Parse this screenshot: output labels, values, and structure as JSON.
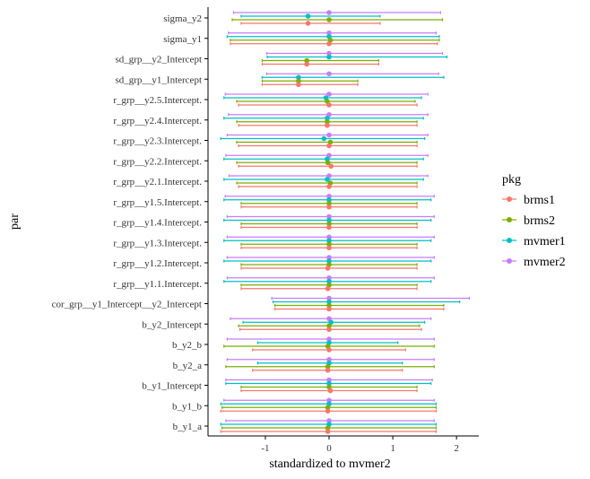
{
  "chart_data": {
    "type": "forest",
    "xlabel": "standardized to mvmer2",
    "ylabel": "par",
    "xlim": [
      -1.9,
      2.35
    ],
    "xticks": [
      -1,
      0,
      1,
      2
    ],
    "xtick_labels": [
      "-1",
      "0",
      "1",
      "2"
    ],
    "grid": false,
    "legend_position": "right",
    "legend": {
      "title": "pkg",
      "items": [
        {
          "name": "brms1",
          "color": "#F8766D"
        },
        {
          "name": "brms2",
          "color": "#7CAE00"
        },
        {
          "name": "mvmer1",
          "color": "#00BFC4"
        },
        {
          "name": "mvmer2",
          "color": "#C77CFF"
        }
      ]
    },
    "categories": [
      "sigma_y2",
      "sigma_y1",
      "sd_grp__y2_Intercept",
      "sd_grp__y1_Intercept",
      "r_grp__y2.5.Intercept.",
      "r_grp__y2.4.Intercept.",
      "r_grp__y2.3.Intercept.",
      "r_grp__y2.2.Intercept.",
      "r_grp__y2.1.Intercept.",
      "r_grp__y1.5.Intercept.",
      "r_grp__y1.4.Intercept.",
      "r_grp__y1.3.Intercept.",
      "r_grp__y1.2.Intercept.",
      "r_grp__y1.1.Intercept.",
      "cor_grp__y1_Intercept__y2_Intercept",
      "b_y2_Intercept",
      "b_y2_b",
      "b_y2_a",
      "b_y1_Intercept",
      "b_y1_b",
      "b_y1_a"
    ],
    "series": [
      {
        "name": "mvmer2",
        "color": "#C77CFF",
        "estimate": [
          0,
          0,
          0,
          0,
          0,
          0,
          0,
          0,
          0,
          0,
          0,
          0,
          0,
          0,
          0,
          0,
          0,
          0,
          0,
          0,
          0
        ],
        "lower": [
          -1.5,
          -1.58,
          -0.98,
          -0.98,
          -1.63,
          -1.58,
          -1.6,
          -1.62,
          -1.57,
          -1.63,
          -1.6,
          -1.6,
          -1.6,
          -1.6,
          -0.9,
          -1.55,
          -1.6,
          -1.6,
          -1.62,
          -1.65,
          -1.62
        ],
        "upper": [
          1.75,
          1.68,
          1.78,
          1.72,
          1.55,
          1.55,
          1.55,
          1.55,
          1.55,
          1.65,
          1.65,
          1.65,
          1.65,
          1.65,
          2.2,
          1.6,
          1.65,
          1.65,
          1.62,
          1.65,
          1.65
        ]
      },
      {
        "name": "mvmer1",
        "color": "#00BFC4",
        "estimate": [
          -0.33,
          0,
          0,
          -0.48,
          -0.05,
          -0.03,
          -0.08,
          -0.03,
          -0.03,
          0,
          0,
          0,
          0,
          0,
          0,
          0.03,
          0,
          0,
          0,
          0,
          0
        ],
        "lower": [
          -1.38,
          -1.6,
          -0.97,
          -1.05,
          -1.65,
          -1.65,
          -1.7,
          -1.65,
          -1.65,
          -1.65,
          -1.65,
          -1.65,
          -1.65,
          -1.65,
          -0.88,
          -1.35,
          -1.12,
          -1.12,
          -1.62,
          -1.7,
          -1.7
        ],
        "upper": [
          0.8,
          1.73,
          1.85,
          1.8,
          1.45,
          1.48,
          1.5,
          1.48,
          1.48,
          1.6,
          1.6,
          1.6,
          1.6,
          1.6,
          2.05,
          1.5,
          1.08,
          1.15,
          1.6,
          1.68,
          1.68
        ]
      },
      {
        "name": "brms2",
        "color": "#7CAE00",
        "estimate": [
          0,
          0.02,
          -0.35,
          -0.48,
          -0.03,
          -0.03,
          0.02,
          -0.02,
          0.02,
          0,
          0,
          0,
          0,
          0,
          0,
          0,
          -0.02,
          -0.02,
          0,
          -0.02,
          -0.02
        ],
        "lower": [
          -1.52,
          -1.55,
          -1.05,
          -1.05,
          -1.45,
          -1.45,
          -1.45,
          -1.45,
          -1.45,
          -1.38,
          -1.38,
          -1.38,
          -1.38,
          -1.38,
          -0.85,
          -1.42,
          -1.65,
          -1.62,
          -1.38,
          -1.68,
          -1.68
        ],
        "upper": [
          1.78,
          1.73,
          0.78,
          0.45,
          1.35,
          1.38,
          1.38,
          1.38,
          1.38,
          1.38,
          1.38,
          1.38,
          1.38,
          1.38,
          1.8,
          1.42,
          1.65,
          1.65,
          1.38,
          1.68,
          1.68
        ]
      },
      {
        "name": "brms1",
        "color": "#F8766D",
        "estimate": [
          -0.33,
          0,
          -0.35,
          -0.48,
          0,
          -0.03,
          0,
          0.03,
          0,
          0,
          0,
          0,
          -0.02,
          -0.02,
          0,
          0,
          0,
          -0.02,
          0.02,
          -0.02,
          -0.02
        ],
        "lower": [
          -1.38,
          -1.55,
          -1.05,
          -1.05,
          -1.42,
          -1.42,
          -1.42,
          -1.42,
          -1.42,
          -1.38,
          -1.38,
          -1.38,
          -1.38,
          -1.38,
          -0.85,
          -1.4,
          -1.2,
          -1.2,
          -1.38,
          -1.7,
          -1.7
        ],
        "upper": [
          0.8,
          1.7,
          0.78,
          0.45,
          1.38,
          1.38,
          1.38,
          1.38,
          1.38,
          1.38,
          1.38,
          1.38,
          1.38,
          1.38,
          1.8,
          1.45,
          1.2,
          1.15,
          1.38,
          1.68,
          1.68
        ]
      }
    ]
  }
}
